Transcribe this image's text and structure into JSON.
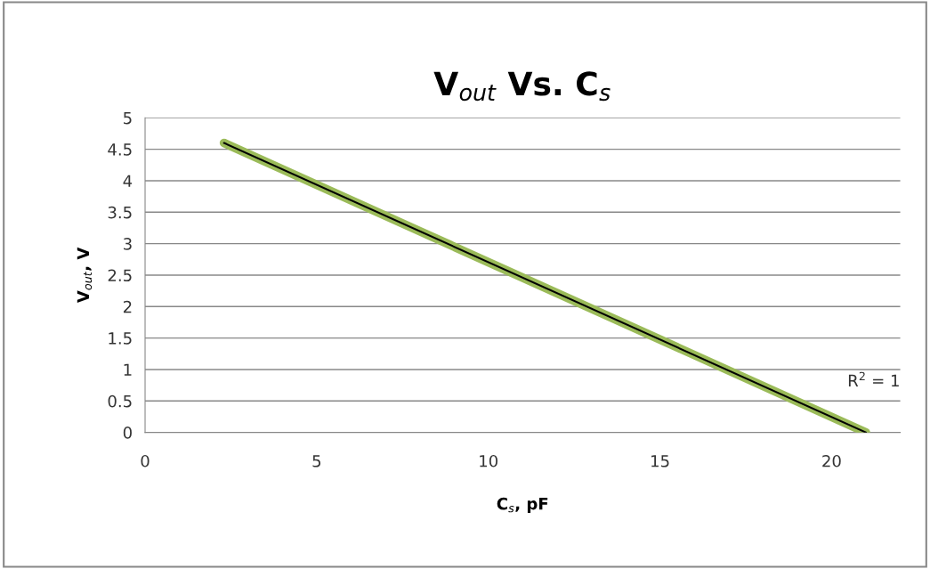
{
  "chart_data": {
    "type": "line",
    "title": "V$_{out}$ Vs. C$_{s}$",
    "xlabel": "C$_{s}$, pF",
    "ylabel": "V$_{out}$, V",
    "series": [
      {
        "color": "#9bbb59",
        "x": [
          2.3,
          21
        ],
        "values": [
          4.6,
          0
        ]
      }
    ],
    "annotations": [
      "R$^{2}$ = 1"
    ],
    "xlim": [
      0,
      22
    ],
    "xticks": [
      0,
      5,
      10,
      15,
      20
    ],
    "ylim": [
      0,
      5
    ],
    "yticks": [
      0,
      0.5,
      1,
      1.5,
      2,
      2.5,
      3,
      3.5,
      4,
      4.5,
      5
    ],
    "grid": "y",
    "marker": "none",
    "line_style": "solid"
  }
}
